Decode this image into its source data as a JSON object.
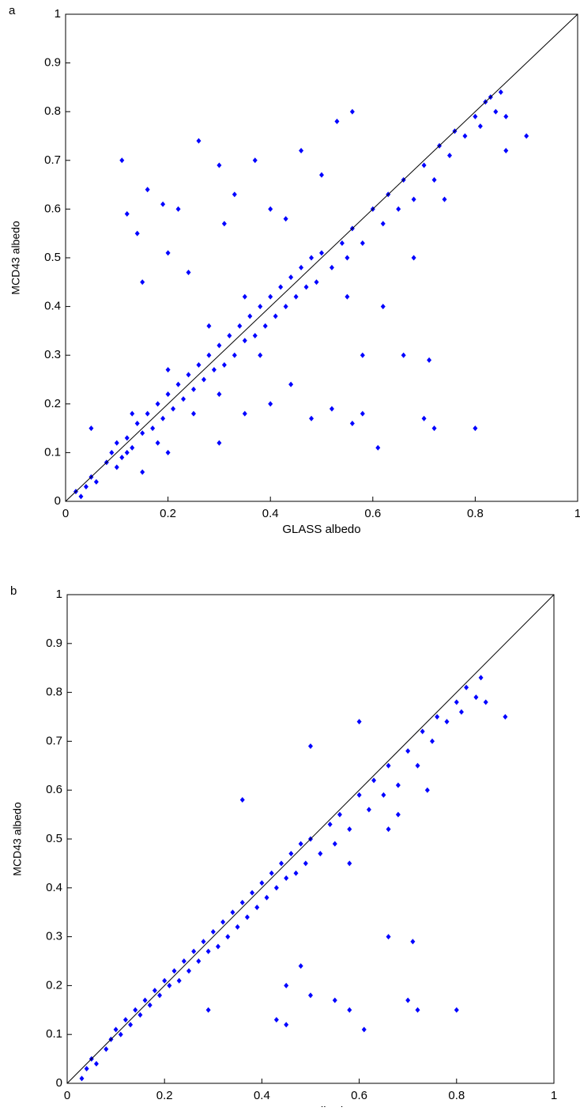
{
  "chart_data": [
    {
      "type": "scatter",
      "panel": "a",
      "xlabel": "GLASS albedo",
      "ylabel": "MCD43 albedo",
      "color": "#0000ff",
      "xlim": [
        0,
        1
      ],
      "ylim": [
        0,
        1
      ],
      "xticks": [
        0,
        0.2,
        0.4,
        0.6,
        0.8,
        1
      ],
      "yticks": [
        0,
        0.1,
        0.2,
        0.3,
        0.4,
        0.5,
        0.6,
        0.7,
        0.8,
        0.9,
        1
      ],
      "reference_line": {
        "x": [
          0,
          1
        ],
        "y": [
          0,
          1
        ]
      },
      "x": [
        0.02,
        0.03,
        0.04,
        0.05,
        0.06,
        0.08,
        0.09,
        0.1,
        0.11,
        0.12,
        0.13,
        0.14,
        0.15,
        0.16,
        0.17,
        0.18,
        0.19,
        0.2,
        0.21,
        0.22,
        0.23,
        0.24,
        0.25,
        0.26,
        0.27,
        0.28,
        0.29,
        0.3,
        0.31,
        0.32,
        0.33,
        0.34,
        0.35,
        0.36,
        0.37,
        0.38,
        0.39,
        0.4,
        0.41,
        0.42,
        0.43,
        0.44,
        0.45,
        0.46,
        0.47,
        0.48,
        0.49,
        0.5,
        0.52,
        0.54,
        0.55,
        0.56,
        0.58,
        0.6,
        0.62,
        0.63,
        0.65,
        0.66,
        0.68,
        0.7,
        0.72,
        0.73,
        0.75,
        0.76,
        0.78,
        0.8,
        0.81,
        0.82,
        0.84,
        0.85,
        0.83,
        0.86,
        0.11,
        0.12,
        0.14,
        0.15,
        0.16,
        0.19,
        0.2,
        0.22,
        0.24,
        0.26,
        0.3,
        0.31,
        0.33,
        0.37,
        0.4,
        0.43,
        0.46,
        0.5,
        0.53,
        0.56,
        0.9,
        0.86,
        0.05,
        0.15,
        0.2,
        0.3,
        0.35,
        0.4,
        0.44,
        0.48,
        0.52,
        0.56,
        0.58,
        0.61,
        0.58,
        0.66,
        0.7,
        0.71,
        0.72,
        0.8,
        0.62,
        0.68,
        0.74,
        0.55,
        0.1,
        0.12,
        0.13,
        0.18,
        0.2,
        0.25,
        0.28,
        0.3,
        0.35,
        0.38
      ],
      "y": [
        0.02,
        0.01,
        0.03,
        0.05,
        0.04,
        0.08,
        0.1,
        0.12,
        0.09,
        0.13,
        0.11,
        0.16,
        0.14,
        0.18,
        0.15,
        0.2,
        0.17,
        0.22,
        0.19,
        0.24,
        0.21,
        0.26,
        0.23,
        0.28,
        0.25,
        0.3,
        0.27,
        0.32,
        0.28,
        0.34,
        0.3,
        0.36,
        0.33,
        0.38,
        0.34,
        0.4,
        0.36,
        0.42,
        0.38,
        0.44,
        0.4,
        0.46,
        0.42,
        0.48,
        0.44,
        0.5,
        0.45,
        0.51,
        0.48,
        0.53,
        0.5,
        0.56,
        0.53,
        0.6,
        0.57,
        0.63,
        0.6,
        0.66,
        0.62,
        0.69,
        0.66,
        0.73,
        0.71,
        0.76,
        0.75,
        0.79,
        0.77,
        0.82,
        0.8,
        0.84,
        0.83,
        0.79,
        0.7,
        0.59,
        0.55,
        0.45,
        0.64,
        0.61,
        0.51,
        0.6,
        0.47,
        0.74,
        0.69,
        0.57,
        0.63,
        0.7,
        0.6,
        0.58,
        0.72,
        0.67,
        0.78,
        0.8,
        0.75,
        0.72,
        0.15,
        0.06,
        0.1,
        0.12,
        0.18,
        0.2,
        0.24,
        0.17,
        0.19,
        0.16,
        0.18,
        0.11,
        0.3,
        0.3,
        0.17,
        0.29,
        0.15,
        0.15,
        0.4,
        0.5,
        0.62,
        0.42,
        0.07,
        0.1,
        0.18,
        0.12,
        0.27,
        0.18,
        0.36,
        0.22,
        0.42,
        0.3
      ]
    },
    {
      "type": "scatter",
      "panel": "b",
      "xlabel": "GLASS albedo",
      "ylabel": "MCD43 albedo",
      "color": "#0000ff",
      "xlim": [
        0,
        1
      ],
      "ylim": [
        0,
        1
      ],
      "xticks": [
        0,
        0.2,
        0.4,
        0.6,
        0.8,
        1
      ],
      "yticks": [
        0,
        0.1,
        0.2,
        0.3,
        0.4,
        0.5,
        0.6,
        0.7,
        0.8,
        0.9,
        1
      ],
      "reference_line": {
        "x": [
          0,
          1
        ],
        "y": [
          0,
          1
        ]
      },
      "x": [
        0.03,
        0.04,
        0.05,
        0.06,
        0.08,
        0.09,
        0.1,
        0.11,
        0.12,
        0.13,
        0.14,
        0.15,
        0.16,
        0.17,
        0.18,
        0.19,
        0.2,
        0.21,
        0.22,
        0.23,
        0.24,
        0.25,
        0.26,
        0.27,
        0.28,
        0.29,
        0.3,
        0.31,
        0.32,
        0.33,
        0.34,
        0.35,
        0.36,
        0.37,
        0.38,
        0.39,
        0.4,
        0.41,
        0.42,
        0.43,
        0.44,
        0.45,
        0.46,
        0.47,
        0.48,
        0.49,
        0.5,
        0.52,
        0.54,
        0.55,
        0.56,
        0.58,
        0.6,
        0.62,
        0.63,
        0.65,
        0.66,
        0.68,
        0.7,
        0.72,
        0.73,
        0.75,
        0.76,
        0.78,
        0.8,
        0.81,
        0.82,
        0.84,
        0.85,
        0.86,
        0.55,
        0.58,
        0.61,
        0.66,
        0.7,
        0.71,
        0.72,
        0.8,
        0.45,
        0.48,
        0.5,
        0.43,
        0.45,
        0.36,
        0.5,
        0.6,
        0.9,
        0.29,
        0.58,
        0.66,
        0.74,
        0.68
      ],
      "y": [
        0.01,
        0.03,
        0.05,
        0.04,
        0.07,
        0.09,
        0.11,
        0.1,
        0.13,
        0.12,
        0.15,
        0.14,
        0.17,
        0.16,
        0.19,
        0.18,
        0.21,
        0.2,
        0.23,
        0.21,
        0.25,
        0.23,
        0.27,
        0.25,
        0.29,
        0.27,
        0.31,
        0.28,
        0.33,
        0.3,
        0.35,
        0.32,
        0.37,
        0.34,
        0.39,
        0.36,
        0.41,
        0.38,
        0.43,
        0.4,
        0.45,
        0.42,
        0.47,
        0.43,
        0.49,
        0.45,
        0.5,
        0.47,
        0.53,
        0.49,
        0.55,
        0.52,
        0.59,
        0.56,
        0.62,
        0.59,
        0.65,
        0.61,
        0.68,
        0.65,
        0.72,
        0.7,
        0.75,
        0.74,
        0.78,
        0.76,
        0.81,
        0.79,
        0.83,
        0.78,
        0.17,
        0.15,
        0.11,
        0.3,
        0.17,
        0.29,
        0.15,
        0.15,
        0.2,
        0.24,
        0.18,
        0.13,
        0.12,
        0.58,
        0.69,
        0.74,
        0.75,
        0.15,
        0.45,
        0.52,
        0.6,
        0.55
      ]
    }
  ]
}
